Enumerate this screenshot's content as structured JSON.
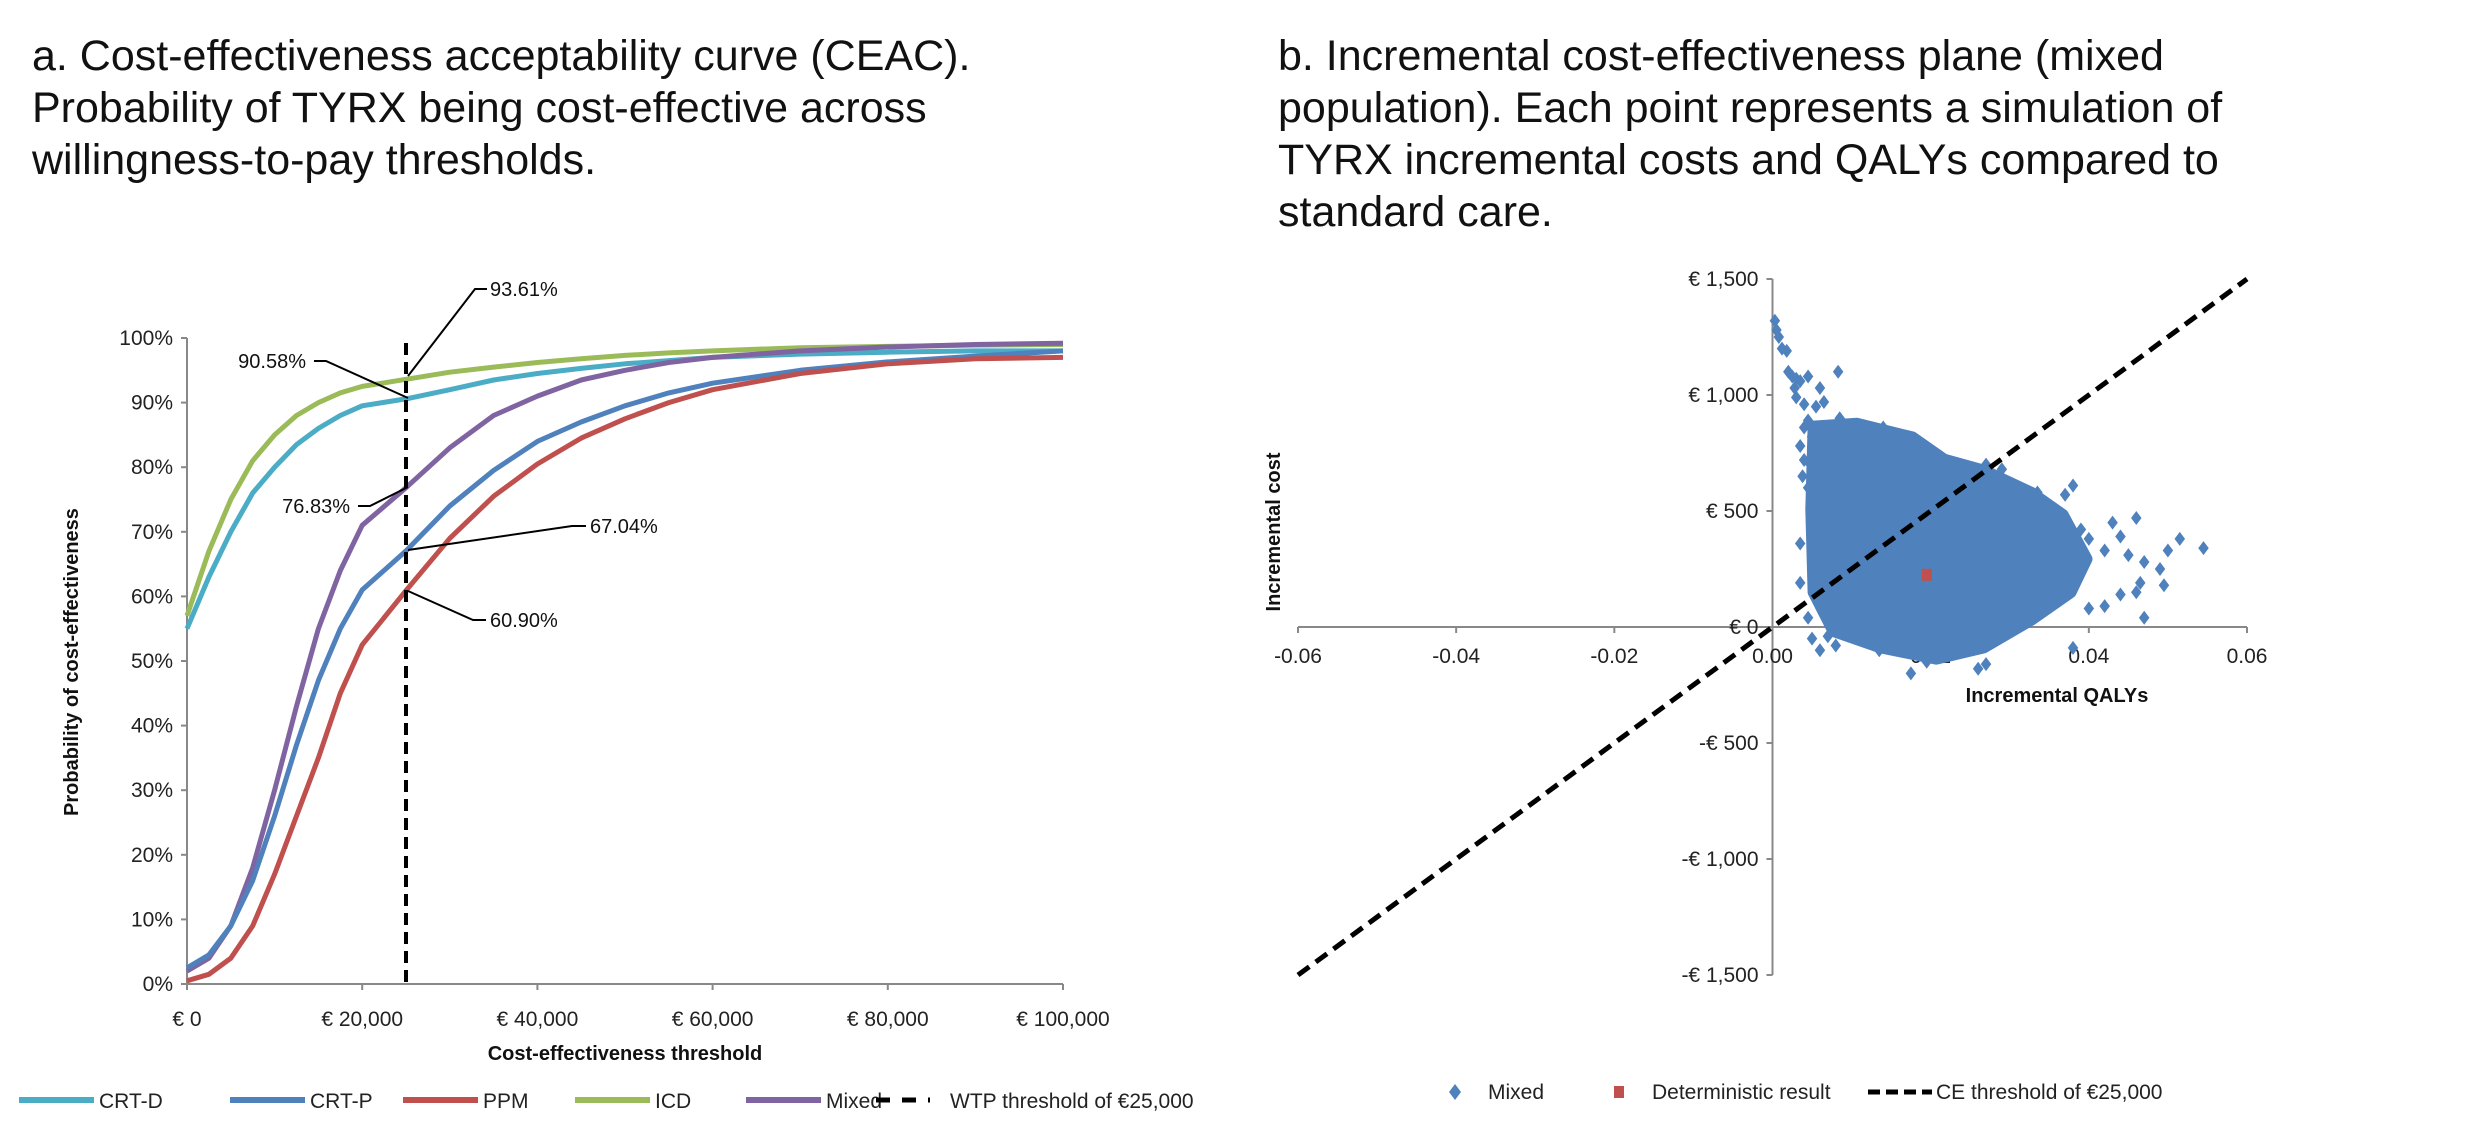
{
  "panel_a": {
    "title": "a. Cost-effectiveness acceptability curve (CEAC).\nProbability of TYRX being cost-effective across\nwillingness-to-pay thresholds."
  },
  "panel_b": {
    "title": "b. Incremental cost-effectiveness plane (mixed\npopulation). Each point represents a simulation of\nTYRX incremental costs and QALYs compared to\nstandard care."
  },
  "chart_data": [
    {
      "type": "line",
      "xlabel": "Cost-effectiveness threshold",
      "ylabel": "Probability of cost-effectiveness",
      "xlim": [
        0,
        100000
      ],
      "ylim": [
        0,
        100
      ],
      "x_ticks": [
        "€ 0",
        "€ 20,000",
        "€ 40,000",
        "€ 60,000",
        "€ 80,000",
        "€ 100,000"
      ],
      "y_ticks": [
        "0%",
        "10%",
        "20%",
        "30%",
        "40%",
        "50%",
        "60%",
        "70%",
        "80%",
        "90%",
        "100%"
      ],
      "grid": false,
      "legend_position": "bottom",
      "x": [
        0,
        2500,
        5000,
        7500,
        10000,
        12500,
        15000,
        17500,
        20000,
        25000,
        30000,
        35000,
        40000,
        45000,
        50000,
        55000,
        60000,
        70000,
        80000,
        90000,
        100000
      ],
      "series": [
        {
          "name": "CRT-D",
          "color": "#4BACC6",
          "values": [
            55,
            63,
            70,
            76,
            80,
            83.5,
            86,
            88,
            89.5,
            90.58,
            92,
            93.5,
            94.5,
            95.3,
            96,
            96.5,
            97,
            97.5,
            97.8,
            98,
            98
          ]
        },
        {
          "name": "CRT-P",
          "color": "#4F81BD",
          "values": [
            2.5,
            4.5,
            9,
            16,
            26,
            37,
            47,
            55,
            61,
            67.04,
            74,
            79.5,
            84,
            87,
            89.5,
            91.5,
            93,
            95,
            96.3,
            97.2,
            98
          ]
        },
        {
          "name": "PPM",
          "color": "#C0504D",
          "values": [
            0.5,
            1.5,
            4,
            9,
            17,
            26,
            35,
            45,
            52.5,
            60.9,
            69,
            75.5,
            80.5,
            84.5,
            87.5,
            90,
            92,
            94.5,
            96,
            96.8,
            97
          ]
        },
        {
          "name": "ICD",
          "color": "#9BBB59",
          "values": [
            57,
            67,
            75,
            81,
            85,
            88,
            90,
            91.5,
            92.5,
            93.61,
            94.7,
            95.5,
            96.2,
            96.8,
            97.3,
            97.7,
            98,
            98.5,
            98.7,
            98.9,
            99
          ]
        },
        {
          "name": "Mixed",
          "color": "#8064A2",
          "values": [
            2,
            4,
            9,
            18,
            30,
            43,
            55,
            64,
            71,
            76.83,
            83,
            88,
            91,
            93.5,
            95,
            96.2,
            97,
            98,
            98.6,
            99,
            99.2
          ]
        }
      ],
      "reference_line": {
        "name": "WTP threshold of €25,000",
        "x": 25000,
        "style": "dashed",
        "color": "#000000"
      },
      "annotations": [
        "93.61%",
        "90.58%",
        "76.83%",
        "67.04%",
        "60.90%"
      ]
    },
    {
      "type": "scatter",
      "xlabel": "Incremental QALYs",
      "ylabel": "Incremental cost",
      "xlim": [
        -0.06,
        0.06
      ],
      "ylim": [
        -1500,
        1500
      ],
      "x_ticks": [
        "-0.06",
        "-0.04",
        "-0.02",
        "0.00",
        "0.02",
        "0.04",
        "0.06"
      ],
      "y_ticks": [
        "-€ 1,500",
        "-€ 1,000",
        "-€ 500",
        "€ 0",
        "€ 500",
        "€ 1,000",
        "€ 1,500"
      ],
      "grid": false,
      "legend_position": "bottom",
      "legend": [
        "Mixed",
        "Deterministic result",
        "CE threshold of €25,000"
      ],
      "series": [
        {
          "name": "Mixed",
          "color": "#4F81BD",
          "marker": "diamond",
          "dense_region": [
            [
              0.0052,
              864
            ],
            [
              0.0107,
              876
            ],
            [
              0.0177,
              817
            ],
            [
              0.0217,
              721
            ],
            [
              0.0267,
              674
            ],
            [
              0.0327,
              579
            ],
            [
              0.0367,
              483
            ],
            [
              0.0397,
              293
            ],
            [
              0.0377,
              150
            ],
            [
              0.0327,
              31
            ],
            [
              0.0267,
              -88
            ],
            [
              0.0207,
              -136
            ],
            [
              0.0137,
              -88
            ],
            [
              0.0077,
              -17
            ],
            [
              0.0052,
              150
            ],
            [
              0.0049,
              507
            ]
          ],
          "points": [
            [
              0.0003,
              1320
            ],
            [
              0.0005,
              1280
            ],
            [
              0.0008,
              1250
            ],
            [
              0.0012,
              1200
            ],
            [
              0.0018,
              1190
            ],
            [
              0.002,
              1100
            ],
            [
              0.0025,
              1080
            ],
            [
              0.003,
              1070
            ],
            [
              0.0028,
              1030
            ],
            [
              0.0035,
              1060
            ],
            [
              0.0045,
              1080
            ],
            [
              0.006,
              1030
            ],
            [
              0.0083,
              1100
            ],
            [
              0.003,
              990
            ],
            [
              0.004,
              960
            ],
            [
              0.0055,
              950
            ],
            [
              0.0065,
              970
            ],
            [
              0.0035,
              780
            ],
            [
              0.004,
              860
            ],
            [
              0.0045,
              890
            ],
            [
              0.005,
              820
            ],
            [
              0.0048,
              700
            ],
            [
              0.004,
              720
            ],
            [
              0.0038,
              650
            ],
            [
              0.0045,
              600
            ],
            [
              0.0035,
              360
            ],
            [
              0.005,
              340
            ],
            [
              0.0035,
              190
            ],
            [
              0.0045,
              40
            ],
            [
              0.005,
              -50
            ],
            [
              0.006,
              -100
            ],
            [
              0.007,
              -40
            ],
            [
              0.008,
              -80
            ],
            [
              0.0135,
              -100
            ],
            [
              0.0175,
              -200
            ],
            [
              0.0195,
              -150
            ],
            [
              0.0245,
              -100
            ],
            [
              0.026,
              -180
            ],
            [
              0.027,
              -160
            ],
            [
              0.038,
              -90
            ],
            [
              0.043,
              450
            ],
            [
              0.046,
              470
            ],
            [
              0.044,
              390
            ],
            [
              0.045,
              310
            ],
            [
              0.047,
              280
            ],
            [
              0.0465,
              190
            ],
            [
              0.046,
              150
            ],
            [
              0.047,
              40
            ],
            [
              0.049,
              250
            ],
            [
              0.0495,
              180
            ],
            [
              0.05,
              330
            ],
            [
              0.0515,
              380
            ],
            [
              0.0545,
              340
            ],
            [
              0.044,
              140
            ],
            [
              0.042,
              90
            ],
            [
              0.04,
              80
            ],
            [
              0.038,
              610
            ],
            [
              0.037,
              570
            ],
            [
              0.0335,
              580
            ],
            [
              0.031,
              600
            ],
            [
              0.029,
              680
            ],
            [
              0.027,
              700
            ],
            [
              0.0235,
              700
            ],
            [
              0.021,
              710
            ],
            [
              0.018,
              800
            ],
            [
              0.014,
              860
            ],
            [
              0.011,
              860
            ],
            [
              0.0085,
              900
            ],
            [
              0.036,
              480
            ],
            [
              0.04,
              380
            ],
            [
              0.042,
              330
            ],
            [
              0.038,
              240
            ],
            [
              0.037,
              160
            ],
            [
              0.034,
              60
            ],
            [
              0.031,
              0
            ],
            [
              0.0285,
              -40
            ],
            [
              0.0225,
              -60
            ],
            [
              0.016,
              -60
            ],
            [
              0.011,
              -40
            ],
            [
              0.039,
              420
            ]
          ]
        },
        {
          "name": "Deterministic result",
          "color": "#C0504D",
          "marker": "square",
          "points": [
            [
              0.0195,
              225
            ]
          ]
        }
      ],
      "reference_line": {
        "name": "CE threshold of €25,000",
        "from": [
          -0.06,
          -1500
        ],
        "to": [
          0.06,
          1500
        ],
        "style": "dashed",
        "color": "#000000"
      }
    }
  ]
}
